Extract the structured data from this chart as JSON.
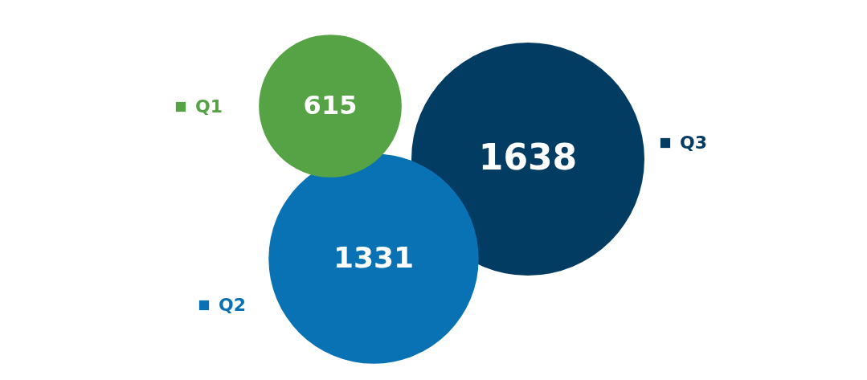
{
  "chart_data": {
    "type": "other",
    "categories": [
      "Q1",
      "Q2",
      "Q3"
    ],
    "values": [
      615,
      1331,
      1638
    ],
    "colors": [
      "#56a346",
      "#0872b4",
      "#033c62"
    ],
    "data_labels": true
  }
}
